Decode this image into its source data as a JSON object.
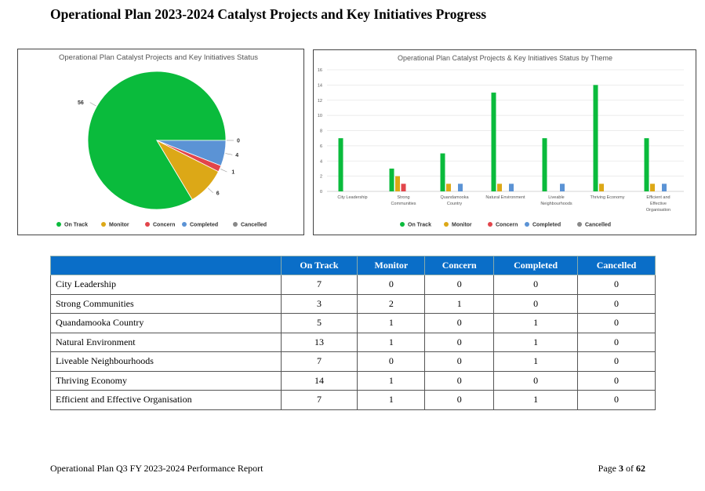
{
  "page": {
    "title": "Operational Plan 2023-2024 Catalyst Projects and Key Initiatives Progress",
    "footer_left": "Operational Plan Q3 FY 2023-2024 Performance Report",
    "footer_page_prefix": "Page ",
    "footer_page_num": "3",
    "footer_page_suffix": " of ",
    "footer_page_total": "62"
  },
  "legend": [
    "On Track",
    "Monitor",
    "Concern",
    "Completed",
    "Cancelled"
  ],
  "colors": {
    "on_track": "#0abb3c",
    "monitor": "#dca817",
    "concern": "#e2454b",
    "completed": "#5b93d5",
    "cancelled": "#888888",
    "table_header": "#0a6ec8"
  },
  "chart_data": [
    {
      "type": "pie",
      "title": "Operational Plan Catalyst Projects and Key Initiatives Status",
      "categories": [
        "On Track",
        "Monitor",
        "Concern",
        "Completed",
        "Cancelled"
      ],
      "values": [
        56,
        6,
        1,
        4,
        0
      ],
      "data_labels": [
        "56",
        "6",
        "1",
        "4",
        "0"
      ],
      "legend_position": "bottom"
    },
    {
      "type": "bar",
      "title": "Operational Plan Catalyst Projects & Key Initiatives Status by Theme",
      "categories": [
        [
          "City Leadership"
        ],
        [
          "Strong",
          "Communities"
        ],
        [
          "Quandamooka",
          "Country"
        ],
        [
          "Natural Environment"
        ],
        [
          "Liveable",
          "Neighbourhoods"
        ],
        [
          "Thriving Economy"
        ],
        [
          "Efficient and",
          "Effective",
          "Organisation"
        ]
      ],
      "series": [
        {
          "name": "On Track",
          "values": [
            7,
            3,
            5,
            13,
            7,
            14,
            7
          ]
        },
        {
          "name": "Monitor",
          "values": [
            0,
            2,
            1,
            1,
            0,
            1,
            1
          ]
        },
        {
          "name": "Concern",
          "values": [
            0,
            1,
            0,
            0,
            0,
            0,
            0
          ]
        },
        {
          "name": "Completed",
          "values": [
            0,
            0,
            1,
            1,
            1,
            0,
            1
          ]
        },
        {
          "name": "Cancelled",
          "values": [
            0,
            0,
            0,
            0,
            0,
            0,
            0
          ]
        }
      ],
      "yticks": [
        "0",
        "2",
        "4",
        "6",
        "8",
        "10",
        "12",
        "14",
        "16"
      ],
      "ylim": [
        0,
        16
      ],
      "grid": true,
      "legend_position": "bottom"
    }
  ],
  "table": {
    "headers": [
      "",
      "On Track",
      "Monitor",
      "Concern",
      "Completed",
      "Cancelled"
    ],
    "rows": [
      [
        "City Leadership",
        "7",
        "0",
        "0",
        "0",
        "0"
      ],
      [
        "Strong Communities",
        "3",
        "2",
        "1",
        "0",
        "0"
      ],
      [
        "Quandamooka Country",
        "5",
        "1",
        "0",
        "1",
        "0"
      ],
      [
        "Natural Environment",
        "13",
        "1",
        "0",
        "1",
        "0"
      ],
      [
        "Liveable Neighbourhoods",
        "7",
        "0",
        "0",
        "1",
        "0"
      ],
      [
        "Thriving Economy",
        "14",
        "1",
        "0",
        "0",
        "0"
      ],
      [
        "Efficient and Effective Organisation",
        "7",
        "1",
        "0",
        "1",
        "0"
      ]
    ]
  }
}
